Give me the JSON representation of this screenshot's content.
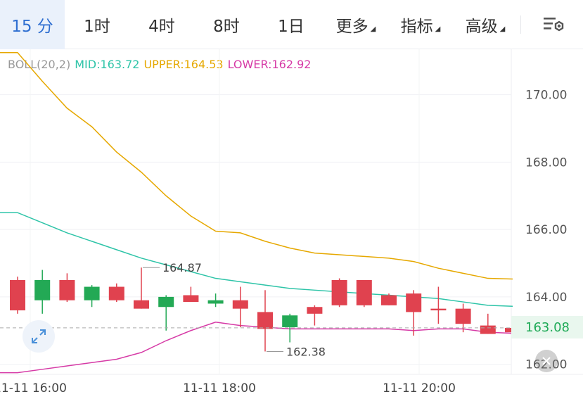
{
  "tabs": [
    {
      "label": "15 分",
      "active": true,
      "dropdown": false
    },
    {
      "label": "1时",
      "active": false,
      "dropdown": false
    },
    {
      "label": "4时",
      "active": false,
      "dropdown": false
    },
    {
      "label": "8时",
      "active": false,
      "dropdown": false
    },
    {
      "label": "1日",
      "active": false,
      "dropdown": false
    },
    {
      "label": "更多",
      "active": false,
      "dropdown": true
    },
    {
      "label": "指标",
      "active": false,
      "dropdown": true
    },
    {
      "label": "高级",
      "active": false,
      "dropdown": true
    }
  ],
  "settings_icon": "chart-settings-icon",
  "indicator": {
    "name": "BOLL(20,2)",
    "mid": "MID:163.72",
    "upper": "UPPER:164.53",
    "lower": "LOWER:162.92"
  },
  "current_price": "163.08",
  "annotations": {
    "high": "164.87",
    "low": "162.38"
  },
  "colors": {
    "up": "#e0424f",
    "down": "#23a955",
    "mid": "#2ec4a8",
    "upper": "#e6a800",
    "lower": "#d63aa6",
    "active_tab": "#2f6fd1"
  },
  "chart_data": {
    "type": "candlestick",
    "ylim": [
      161.7,
      171.35
    ],
    "y_ticks": [
      "170.00",
      "168.00",
      "166.00",
      "164.00",
      "162.00"
    ],
    "x_ticks": [
      "11-11 16:00",
      "11-11 18:00",
      "11-11 20:00"
    ],
    "candles": [
      {
        "x": 0,
        "open": 163.6,
        "close": 164.5,
        "high": 164.6,
        "low": 163.5
      },
      {
        "x": 1,
        "open": 164.5,
        "close": 163.9,
        "high": 164.8,
        "low": 163.5
      },
      {
        "x": 2,
        "open": 163.9,
        "close": 164.5,
        "high": 164.7,
        "low": 163.85
      },
      {
        "x": 3,
        "open": 164.3,
        "close": 163.9,
        "high": 164.35,
        "low": 163.7
      },
      {
        "x": 4,
        "open": 163.9,
        "close": 164.3,
        "high": 164.4,
        "low": 163.85
      },
      {
        "x": 5,
        "open": 163.65,
        "close": 163.9,
        "high": 164.87,
        "low": 163.65
      },
      {
        "x": 6,
        "open": 164.0,
        "close": 163.7,
        "high": 164.05,
        "low": 163.0
      },
      {
        "x": 7,
        "open": 163.85,
        "close": 164.05,
        "high": 164.3,
        "low": 163.85
      },
      {
        "x": 8,
        "open": 163.9,
        "close": 163.8,
        "high": 164.1,
        "low": 163.7
      },
      {
        "x": 9,
        "open": 163.65,
        "close": 163.9,
        "high": 164.3,
        "low": 163.1
      },
      {
        "x": 10,
        "open": 163.05,
        "close": 163.55,
        "high": 164.2,
        "low": 162.38
      },
      {
        "x": 11,
        "open": 163.45,
        "close": 163.1,
        "high": 163.5,
        "low": 162.65
      },
      {
        "x": 12,
        "open": 163.5,
        "close": 163.7,
        "high": 163.75,
        "low": 163.15
      },
      {
        "x": 13,
        "open": 163.75,
        "close": 164.5,
        "high": 164.55,
        "low": 163.7
      },
      {
        "x": 14,
        "open": 163.75,
        "close": 164.5,
        "high": 164.5,
        "low": 163.7
      },
      {
        "x": 15,
        "open": 163.75,
        "close": 164.05,
        "high": 164.1,
        "low": 163.75
      },
      {
        "x": 16,
        "open": 163.55,
        "close": 164.1,
        "high": 164.2,
        "low": 162.85
      },
      {
        "x": 17,
        "open": 163.6,
        "close": 163.65,
        "high": 164.3,
        "low": 163.2
      },
      {
        "x": 18,
        "open": 163.2,
        "close": 163.65,
        "high": 163.8,
        "low": 162.95
      },
      {
        "x": 19,
        "open": 162.9,
        "close": 163.15,
        "high": 163.5,
        "low": 162.9
      },
      {
        "x": 20,
        "open": 162.95,
        "close": 163.08,
        "high": 163.15,
        "low": 162.95
      }
    ],
    "series": [
      {
        "name": "UPPER",
        "values": [
          171.25,
          170.4,
          169.6,
          169.05,
          168.3,
          167.7,
          167.0,
          166.4,
          165.95,
          165.9,
          165.65,
          165.45,
          165.3,
          165.25,
          165.2,
          165.15,
          165.05,
          164.85,
          164.7,
          164.55,
          164.53
        ]
      },
      {
        "name": "MID",
        "values": [
          166.5,
          166.2,
          165.9,
          165.65,
          165.4,
          165.15,
          164.95,
          164.75,
          164.55,
          164.45,
          164.35,
          164.25,
          164.2,
          164.15,
          164.1,
          164.05,
          164.0,
          163.95,
          163.85,
          163.75,
          163.72
        ]
      },
      {
        "name": "LOWER",
        "values": [
          161.75,
          161.85,
          161.95,
          162.05,
          162.15,
          162.35,
          162.7,
          163.0,
          163.25,
          163.15,
          163.1,
          163.05,
          163.05,
          163.05,
          163.05,
          163.05,
          163.0,
          163.05,
          163.05,
          162.95,
          162.92
        ]
      }
    ]
  }
}
